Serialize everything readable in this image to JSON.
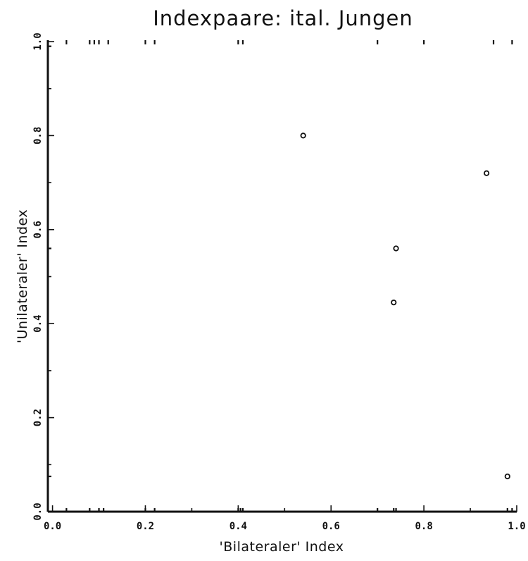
{
  "chart_data": {
    "type": "scatter",
    "title": "Indexpaare: ital. Jungen",
    "xlabel": "'Bilateraler' Index",
    "ylabel": "'Unilateraler' Index",
    "xlim": [
      -0.01,
      1.0
    ],
    "ylim": [
      0.0,
      1.0
    ],
    "xticks": [
      {
        "value": 0.0,
        "label": "0.0"
      },
      {
        "value": 0.2,
        "label": "0.2"
      },
      {
        "value": 0.4,
        "label": "0.4"
      },
      {
        "value": 0.6,
        "label": "0.6"
      },
      {
        "value": 0.8,
        "label": "0.8"
      },
      {
        "value": 1.0,
        "label": "1.0"
      }
    ],
    "yticks": [
      {
        "value": 0.0,
        "label": "0.0"
      },
      {
        "value": 0.2,
        "label": "0.2"
      },
      {
        "value": 0.4,
        "label": "0.4"
      },
      {
        "value": 0.6,
        "label": "0.6"
      },
      {
        "value": 0.8,
        "label": "0.8"
      },
      {
        "value": 1.0,
        "label": "1.0"
      }
    ],
    "points": [
      {
        "x": 0.54,
        "y": 0.8
      },
      {
        "x": 0.74,
        "y": 0.56
      },
      {
        "x": 0.735,
        "y": 0.445
      },
      {
        "x": 0.935,
        "y": 0.72
      },
      {
        "x": 0.98,
        "y": 0.075
      }
    ],
    "rug_top_x": [
      0.03,
      0.08,
      0.09,
      0.1,
      0.12,
      0.2,
      0.22,
      0.4,
      0.41,
      0.7,
      0.8,
      0.95,
      0.99
    ],
    "rug_bottom_x": [
      0.03,
      0.08,
      0.1,
      0.11,
      0.2,
      0.22,
      0.4,
      0.405,
      0.41,
      0.7,
      0.735,
      0.74,
      0.98,
      0.99
    ],
    "rug_left_y": [
      0.075,
      0.56,
      0.99
    ],
    "grid": false,
    "legend": "none"
  }
}
